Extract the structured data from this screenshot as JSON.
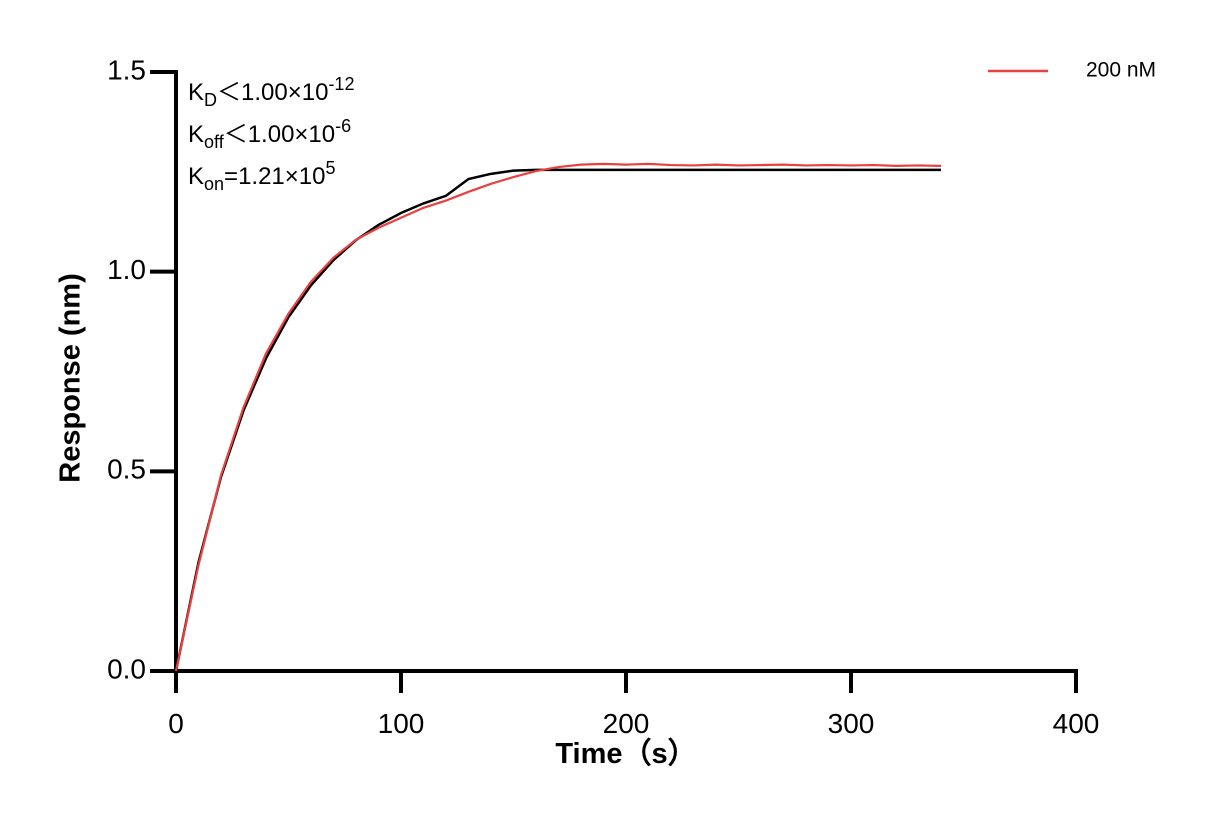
{
  "chart_data": {
    "type": "line",
    "x_label": "Time（s）",
    "y_label": "Response (nm)",
    "xlim": [
      0,
      400
    ],
    "ylim": [
      0,
      1.5
    ],
    "xticks": [
      0,
      100,
      200,
      300,
      400
    ],
    "yticks": [
      {
        "value": 0,
        "label": "0.0"
      },
      0.5,
      {
        "value": 1,
        "label": "1.0"
      },
      1.5
    ],
    "grid": false,
    "legend": "top-right",
    "annotations": [
      {
        "base": "K",
        "sub": "D",
        "relation": "＜",
        "coefficient": "1.00×10",
        "exponent": "-12"
      },
      {
        "base": "K",
        "sub": "off",
        "relation": "＜",
        "coefficient": "1.00×10",
        "exponent": "-6"
      },
      {
        "base": "K",
        "sub": "on",
        "relation": "=",
        "coefficient": "1.21×10",
        "exponent": "5"
      }
    ],
    "x": [
      0,
      10,
      20,
      30,
      40,
      50,
      60,
      70,
      80,
      90,
      100,
      110,
      120,
      130,
      140,
      150,
      160,
      170,
      180,
      190,
      200,
      210,
      220,
      230,
      240,
      250,
      260,
      270,
      280,
      290,
      300,
      310,
      320,
      330,
      340
    ],
    "series": [
      {
        "color": "#000000",
        "values": [
          0,
          0.272,
          0.486,
          0.652,
          0.783,
          0.886,
          0.966,
          1.029,
          1.079,
          1.117,
          1.147,
          1.171,
          1.19,
          1.232,
          1.245,
          1.253,
          1.255,
          1.255,
          1.255,
          1.255,
          1.255,
          1.255,
          1.255,
          1.255,
          1.255,
          1.255,
          1.255,
          1.255,
          1.255,
          1.255,
          1.255,
          1.255,
          1.255,
          1.255,
          1.255
        ]
      },
      {
        "name": "200 nM",
        "color": "#e8413f",
        "values": [
          0,
          0.265,
          0.49,
          0.66,
          0.795,
          0.895,
          0.975,
          1.035,
          1.08,
          1.11,
          1.135,
          1.16,
          1.178,
          1.2,
          1.22,
          1.237,
          1.252,
          1.262,
          1.268,
          1.27,
          1.268,
          1.27,
          1.267,
          1.266,
          1.268,
          1.266,
          1.267,
          1.268,
          1.266,
          1.267,
          1.266,
          1.267,
          1.265,
          1.266,
          1.265
        ]
      }
    ]
  }
}
